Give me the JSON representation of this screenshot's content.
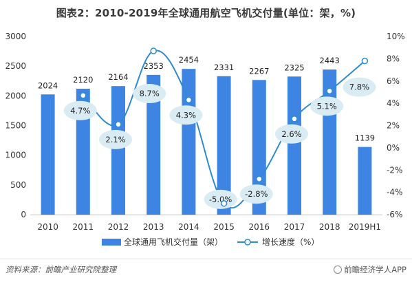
{
  "title": "图表2：2010-2019年全球通用航空飞机交付量(单位：架，%)",
  "source": "资料来源：前瞻产业研究院整理",
  "brand": "前瞻经济学人APP",
  "colors": {
    "bar": "#3e85e3",
    "line": "#2e8bd0",
    "bubble": "#d9ebf3",
    "marker_fill": "#ffffff"
  },
  "chart_data": {
    "type": "bar",
    "categories": [
      "2010",
      "2011",
      "2012",
      "2013",
      "2014",
      "2015",
      "2016",
      "2017",
      "2018",
      "2019H1"
    ],
    "series": [
      {
        "name": "全球通用飞机交付量（架）",
        "type": "bar",
        "axis": "left",
        "values": [
          2024,
          2120,
          2164,
          2353,
          2454,
          2331,
          2267,
          2325,
          2443,
          1139
        ],
        "labels": [
          "2024",
          "2120",
          "2164",
          "2353",
          "2454",
          "2331",
          "2267",
          "2325",
          "2443",
          "1139"
        ]
      },
      {
        "name": "增长速度（%）",
        "type": "line",
        "axis": "right",
        "values": [
          null,
          4.7,
          2.1,
          8.7,
          4.3,
          -5.0,
          -2.8,
          2.6,
          5.1,
          7.8
        ],
        "labels": [
          null,
          "4.7%",
          "2.1%",
          "8.7%",
          "4.3%",
          "-5.0%",
          "-2.8%",
          "2.6%",
          "5.1%",
          "7.8%"
        ]
      }
    ],
    "y_left": {
      "min": 0,
      "max": 3000,
      "ticks": [
        "0",
        "500",
        "1000",
        "1500",
        "2000",
        "2500",
        "3000"
      ]
    },
    "y_right": {
      "min": -6,
      "max": 10,
      "ticks": [
        "-6%",
        "-4%",
        "-2%",
        "0%",
        "2%",
        "4%",
        "6%",
        "8%",
        "10%"
      ]
    },
    "grid": false,
    "legend": "bottom"
  }
}
